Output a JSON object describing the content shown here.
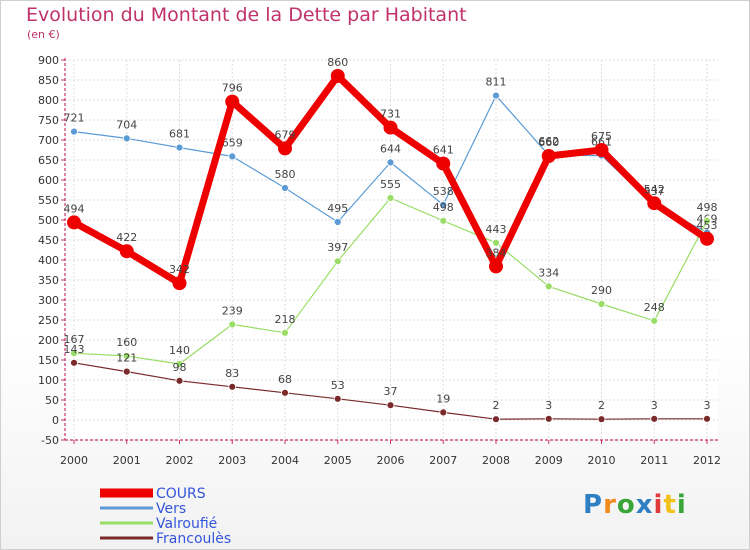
{
  "header": {
    "title": "Evolution du Montant de la Dette par Habitant",
    "subtitle": "(en €)"
  },
  "logo": {
    "text": "Proxiti",
    "colors": [
      "#2e7fc4",
      "#f08a1d",
      "#3aa63a",
      "#2e7fc4",
      "#e23a3a",
      "#f2c21b",
      "#3aa63a"
    ]
  },
  "chart_data": {
    "type": "line",
    "title": "Evolution du Montant de la Dette par Habitant",
    "subtitle": "(en €)",
    "x": [
      "2000",
      "2001",
      "2002",
      "2003",
      "2004",
      "2005",
      "2006",
      "2007",
      "2008",
      "2009",
      "2010",
      "2011",
      "2012"
    ],
    "ylim": [
      -50,
      900
    ],
    "yticks": [
      -50,
      0,
      50,
      100,
      150,
      200,
      250,
      300,
      350,
      400,
      450,
      500,
      550,
      600,
      650,
      700,
      750,
      800,
      850,
      900
    ],
    "grid": true,
    "legend": "bottom-left",
    "series": [
      {
        "name": "Vers",
        "color": "#5b9bd5",
        "width": 1.2,
        "marker": 3.5,
        "labelColor": "#444",
        "values": [
          721,
          704,
          681,
          659,
          580,
          495,
          644,
          538,
          811,
          662,
          661,
          537,
          469
        ]
      },
      {
        "name": "Valroufié",
        "color": "#99dd66",
        "width": 1.2,
        "marker": 3.5,
        "labelColor": "#444",
        "values": [
          167,
          160,
          140,
          239,
          218,
          397,
          555,
          498,
          443,
          334,
          290,
          248,
          498
        ]
      },
      {
        "name": "Francoulès",
        "color": "#7a2a2a",
        "width": 1.2,
        "marker": 3.5,
        "labelColor": "#444",
        "values": [
          143,
          121,
          98,
          83,
          68,
          53,
          37,
          19,
          2,
          3,
          2,
          3,
          3
        ]
      },
      {
        "name": "COURS",
        "color": "#ee0000",
        "width": 7,
        "marker": 7,
        "labelColor": "#444",
        "values": [
          494,
          422,
          342,
          796,
          679,
          860,
          731,
          641,
          384,
          660,
          675,
          542,
          453
        ]
      }
    ],
    "legend_items": [
      {
        "name": "COURS",
        "color": "#ee0000",
        "width": 9
      },
      {
        "name": "Vers",
        "color": "#5b9bd5",
        "width": 3
      },
      {
        "name": "Valroufié",
        "color": "#99dd66",
        "width": 3
      },
      {
        "name": "Francoulès",
        "color": "#7a2a2a",
        "width": 3
      }
    ]
  }
}
